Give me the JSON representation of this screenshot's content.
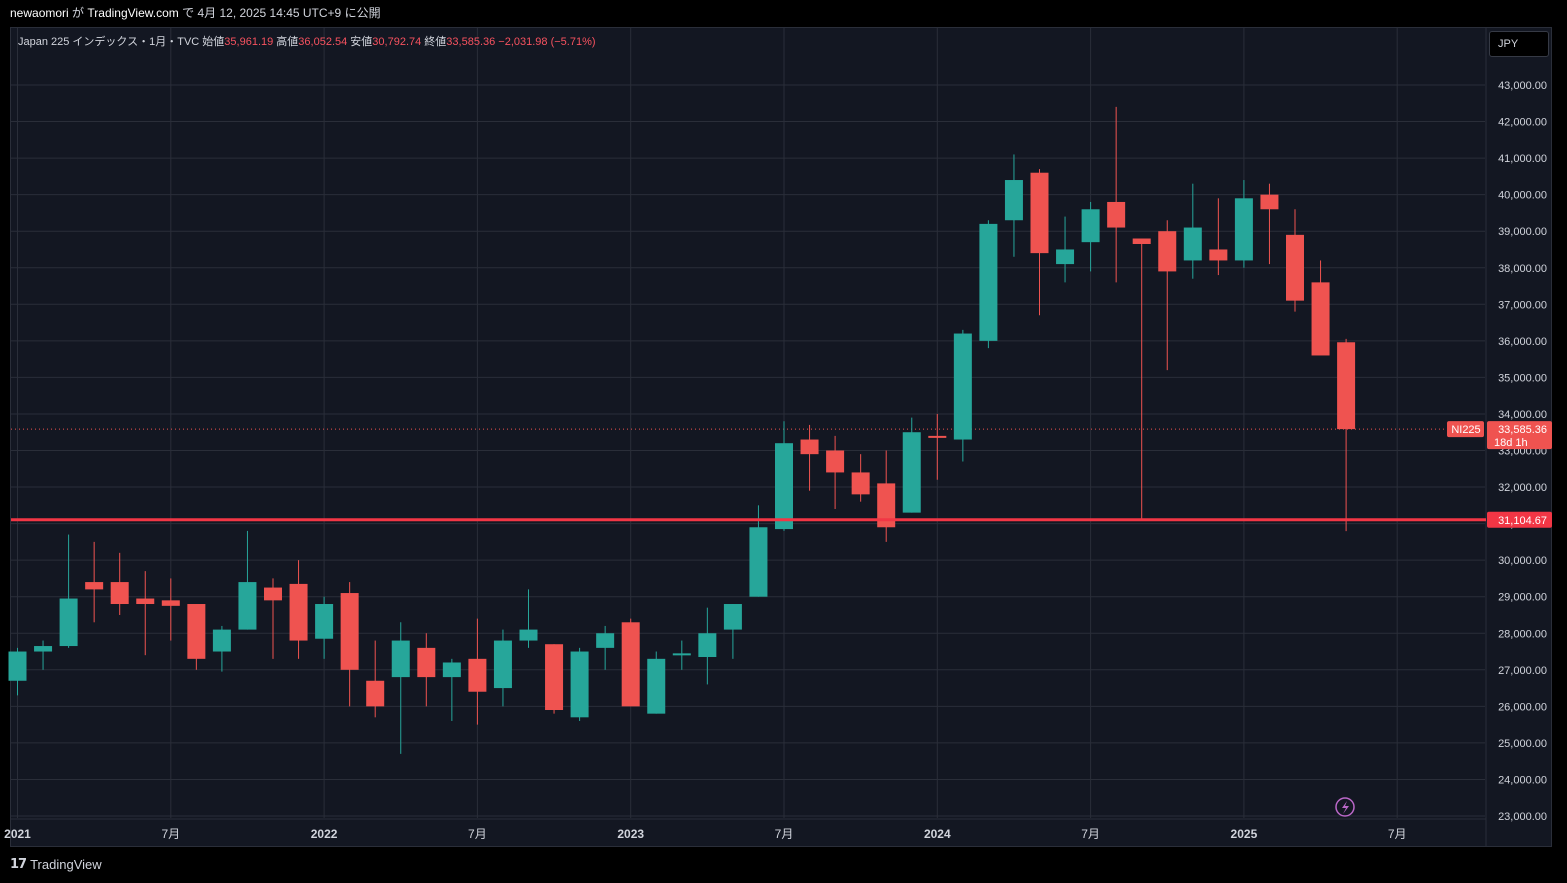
{
  "header": {
    "author": "newaomori",
    "published_text_1": "が",
    "site": "TradingView.com",
    "published_text_2": "で 4月 12, 2025 14:45 UTC+9 に公開"
  },
  "legend": {
    "symbol": "Japan 225 インデックス・1月・TVC",
    "open_label": "始値",
    "open": "35,961.19",
    "high_label": "高値",
    "high": "36,052.54",
    "low_label": "安値",
    "low": "30,792.74",
    "close_label": "終値",
    "close": "33,585.36",
    "change": "−2,031.98 (−5.71%)"
  },
  "currency": "JPY",
  "price_tag": {
    "symbol": "NI225",
    "price": "33,585.36",
    "countdown": "18d 1h"
  },
  "hline_label": "31,104.67",
  "footer": {
    "brand": "TradingView"
  },
  "colors": {
    "up": "#26a69a",
    "down": "#ef5350",
    "bg": "#131722",
    "grid": "#2a2e39",
    "hline": "#f23645"
  },
  "chart_data": {
    "type": "candlestick",
    "interval": "1M",
    "ylim": [
      23000,
      43000
    ],
    "y_ticks": [
      23000,
      24000,
      25000,
      26000,
      27000,
      28000,
      29000,
      30000,
      31000,
      32000,
      33000,
      34000,
      35000,
      36000,
      37000,
      38000,
      39000,
      40000,
      41000,
      42000,
      43000
    ],
    "y_tick_labels": [
      "23,000.00",
      "24,000.00",
      "25,000.00",
      "26,000.00",
      "27,000.00",
      "28,000.00",
      "29,000.00",
      "30,000.00",
      "31,000.00",
      "32,000.00",
      "33,000.00",
      "34,000.00",
      "35,000.00",
      "36,000.00",
      "37,000.00",
      "38,000.00",
      "39,000.00",
      "40,000.00",
      "41,000.00",
      "42,000.00",
      "43,000.00"
    ],
    "x_labels": [
      {
        "label": "2021",
        "index": 0,
        "major": true
      },
      {
        "label": "7月",
        "index": 6,
        "major": false
      },
      {
        "label": "2022",
        "index": 12,
        "major": true
      },
      {
        "label": "7月",
        "index": 18,
        "major": false
      },
      {
        "label": "2023",
        "index": 24,
        "major": true
      },
      {
        "label": "7月",
        "index": 30,
        "major": false
      },
      {
        "label": "2024",
        "index": 36,
        "major": true
      },
      {
        "label": "7月",
        "index": 42,
        "major": false
      },
      {
        "label": "2025",
        "index": 48,
        "major": true
      },
      {
        "label": "7月",
        "index": 54,
        "major": false
      }
    ],
    "horizontal_line": 31104.67,
    "last_price": 33585.36,
    "candles": [
      {
        "o": 26700,
        "h": 27600,
        "l": 26300,
        "c": 27500
      },
      {
        "o": 27500,
        "h": 27800,
        "l": 27000,
        "c": 27650
      },
      {
        "o": 27650,
        "h": 30700,
        "l": 27600,
        "c": 28950
      },
      {
        "o": 29400,
        "h": 30500,
        "l": 28300,
        "c": 29200
      },
      {
        "o": 29400,
        "h": 30200,
        "l": 28500,
        "c": 28800
      },
      {
        "o": 28950,
        "h": 29700,
        "l": 27400,
        "c": 28800
      },
      {
        "o": 28900,
        "h": 29500,
        "l": 27800,
        "c": 28750
      },
      {
        "o": 28800,
        "h": 28800,
        "l": 27000,
        "c": 27300
      },
      {
        "o": 27500,
        "h": 28200,
        "l": 26950,
        "c": 28100
      },
      {
        "o": 28100,
        "h": 30800,
        "l": 28100,
        "c": 29400
      },
      {
        "o": 29250,
        "h": 29500,
        "l": 27300,
        "c": 28900
      },
      {
        "o": 29350,
        "h": 30000,
        "l": 27300,
        "c": 27800
      },
      {
        "o": 27850,
        "h": 29000,
        "l": 27300,
        "c": 28800
      },
      {
        "o": 29100,
        "h": 29400,
        "l": 26000,
        "c": 27000
      },
      {
        "o": 26700,
        "h": 27800,
        "l": 25700,
        "c": 26000
      },
      {
        "o": 26800,
        "h": 28300,
        "l": 24700,
        "c": 27800
      },
      {
        "o": 27600,
        "h": 28000,
        "l": 26000,
        "c": 26800
      },
      {
        "o": 26800,
        "h": 27300,
        "l": 25600,
        "c": 27200
      },
      {
        "o": 27300,
        "h": 28400,
        "l": 25500,
        "c": 26400
      },
      {
        "o": 26500,
        "h": 28100,
        "l": 26000,
        "c": 27800
      },
      {
        "o": 27800,
        "h": 29200,
        "l": 27600,
        "c": 28100
      },
      {
        "o": 27700,
        "h": 27700,
        "l": 25800,
        "c": 25900
      },
      {
        "o": 25700,
        "h": 27600,
        "l": 25600,
        "c": 27500
      },
      {
        "o": 27600,
        "h": 28200,
        "l": 27000,
        "c": 28000
      },
      {
        "o": 28300,
        "h": 28400,
        "l": 26000,
        "c": 26000
      },
      {
        "o": 25800,
        "h": 27500,
        "l": 25800,
        "c": 27300
      },
      {
        "o": 27450,
        "h": 27800,
        "l": 27000,
        "c": 27450
      },
      {
        "o": 27350,
        "h": 28700,
        "l": 26600,
        "c": 28000
      },
      {
        "o": 28100,
        "h": 28800,
        "l": 27300,
        "c": 28800
      },
      {
        "o": 29000,
        "h": 31500,
        "l": 29000,
        "c": 30900
      },
      {
        "o": 30850,
        "h": 33800,
        "l": 30800,
        "c": 33200
      },
      {
        "o": 33300,
        "h": 33700,
        "l": 31900,
        "c": 32900
      },
      {
        "o": 33000,
        "h": 33400,
        "l": 31400,
        "c": 32400
      },
      {
        "o": 32400,
        "h": 32900,
        "l": 31600,
        "c": 31800
      },
      {
        "o": 32100,
        "h": 33000,
        "l": 30500,
        "c": 30900
      },
      {
        "o": 31300,
        "h": 33900,
        "l": 31300,
        "c": 33500
      },
      {
        "o": 33400,
        "h": 34000,
        "l": 32200,
        "c": 33350
      },
      {
        "o": 33300,
        "h": 36300,
        "l": 32700,
        "c": 36200
      },
      {
        "o": 36000,
        "h": 39300,
        "l": 35800,
        "c": 39200
      },
      {
        "o": 39300,
        "h": 41100,
        "l": 38300,
        "c": 40400
      },
      {
        "o": 40600,
        "h": 40700,
        "l": 36700,
        "c": 38400
      },
      {
        "o": 38100,
        "h": 39400,
        "l": 37600,
        "c": 38500
      },
      {
        "o": 38700,
        "h": 39800,
        "l": 37900,
        "c": 39600
      },
      {
        "o": 39800,
        "h": 42400,
        "l": 37600,
        "c": 39100
      },
      {
        "o": 38800,
        "h": 38800,
        "l": 31100,
        "c": 38650
      },
      {
        "o": 39000,
        "h": 39300,
        "l": 35200,
        "c": 37900
      },
      {
        "o": 38200,
        "h": 40300,
        "l": 37700,
        "c": 39100
      },
      {
        "o": 38500,
        "h": 39900,
        "l": 37800,
        "c": 38200
      },
      {
        "o": 38200,
        "h": 40400,
        "l": 38000,
        "c": 39900
      },
      {
        "o": 40000,
        "h": 40300,
        "l": 38100,
        "c": 39600
      },
      {
        "o": 38900,
        "h": 39600,
        "l": 36800,
        "c": 37100
      },
      {
        "o": 37600,
        "h": 38200,
        "l": 35700,
        "c": 35600
      },
      {
        "o": 35961.19,
        "h": 36052.54,
        "l": 30792.74,
        "c": 33585.36
      }
    ]
  }
}
